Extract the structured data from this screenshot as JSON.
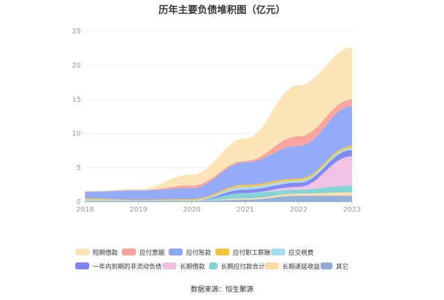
{
  "chart_data": {
    "type": "area",
    "title": "历年主要负债堆积图（亿元）",
    "x": [
      "2018",
      "2019",
      "2020",
      "2021",
      "2022",
      "2023"
    ],
    "ylim": [
      0,
      25
    ],
    "yticks": [
      0,
      5,
      10,
      15,
      20,
      25
    ],
    "grid": true,
    "legend_position": "bottom",
    "stacked": true,
    "series": [
      {
        "name": "其它",
        "color": "#91acd9",
        "values": [
          0.1,
          0.1,
          0.1,
          0.3,
          0.9,
          0.9
        ]
      },
      {
        "name": "长期递延收益",
        "color": "#fcdca4",
        "values": [
          0.0,
          0.0,
          0.0,
          0.2,
          0.3,
          0.5
        ]
      },
      {
        "name": "长期应付款合计",
        "color": "#7ed3d6",
        "values": [
          0.0,
          0.0,
          0.0,
          0.8,
          0.6,
          1.0
        ]
      },
      {
        "name": "长期借款",
        "color": "#f1bfe3",
        "values": [
          0.0,
          0.0,
          0.0,
          0.0,
          0.4,
          4.3
        ]
      },
      {
        "name": "一年内到期的非流动负债",
        "color": "#7b84f0",
        "values": [
          0.0,
          0.0,
          0.0,
          0.5,
          0.6,
          0.9
        ]
      },
      {
        "name": "应交税费",
        "color": "#a6dbf7",
        "values": [
          0.2,
          0.1,
          0.1,
          0.4,
          0.3,
          0.3
        ]
      },
      {
        "name": "应付职工薪酬",
        "color": "#f5c33b",
        "values": [
          0.2,
          0.1,
          0.2,
          0.3,
          0.3,
          0.3
        ]
      },
      {
        "name": "应付账款",
        "color": "#8ea6f7",
        "values": [
          1.0,
          1.4,
          1.6,
          3.3,
          4.8,
          5.8
        ]
      },
      {
        "name": "应付票据",
        "color": "#f8a09a",
        "values": [
          0.0,
          0.0,
          0.4,
          0.2,
          1.4,
          1.0
        ]
      },
      {
        "name": "短期借款",
        "color": "#fde3b5",
        "values": [
          0.1,
          0.2,
          1.6,
          3.3,
          7.5,
          7.6
        ]
      }
    ]
  },
  "legend_order": [
    "短期借款",
    "应付票据",
    "应付账款",
    "应付职工薪酬",
    "应交税费",
    "一年内到期的非流动负债",
    "长期借款",
    "长期应付款合计",
    "长期递延收益",
    "其它"
  ],
  "source": "数据来源：恒生聚源"
}
